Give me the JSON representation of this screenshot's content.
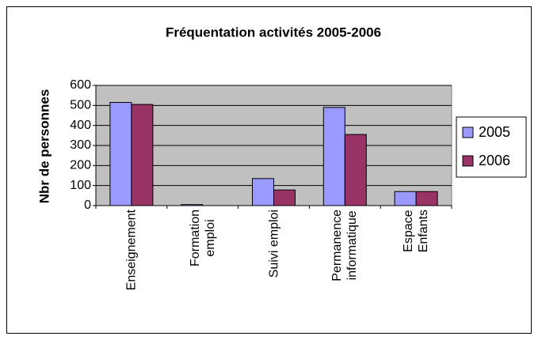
{
  "chart_data": {
    "type": "bar",
    "title": "Fréquentation activités 2005-2006",
    "y_label": "Nbr de personnes",
    "categories": [
      "Enseignement",
      "Formation\nemploi",
      "Suivi emploi",
      "Permanence\ninformatique",
      "Espace\nEnfants"
    ],
    "series": [
      {
        "name": "2005",
        "color": "#9999ff",
        "values": [
          515,
          5,
          135,
          490,
          70
        ]
      },
      {
        "name": "2006",
        "color": "#993366",
        "values": [
          505,
          0,
          78,
          355,
          70
        ]
      }
    ],
    "ylim": [
      0,
      600
    ],
    "yticks": [
      0,
      100,
      200,
      300,
      400,
      500,
      600
    ],
    "grid": true,
    "legend": "right",
    "plot_background": "#c0c0c0"
  }
}
